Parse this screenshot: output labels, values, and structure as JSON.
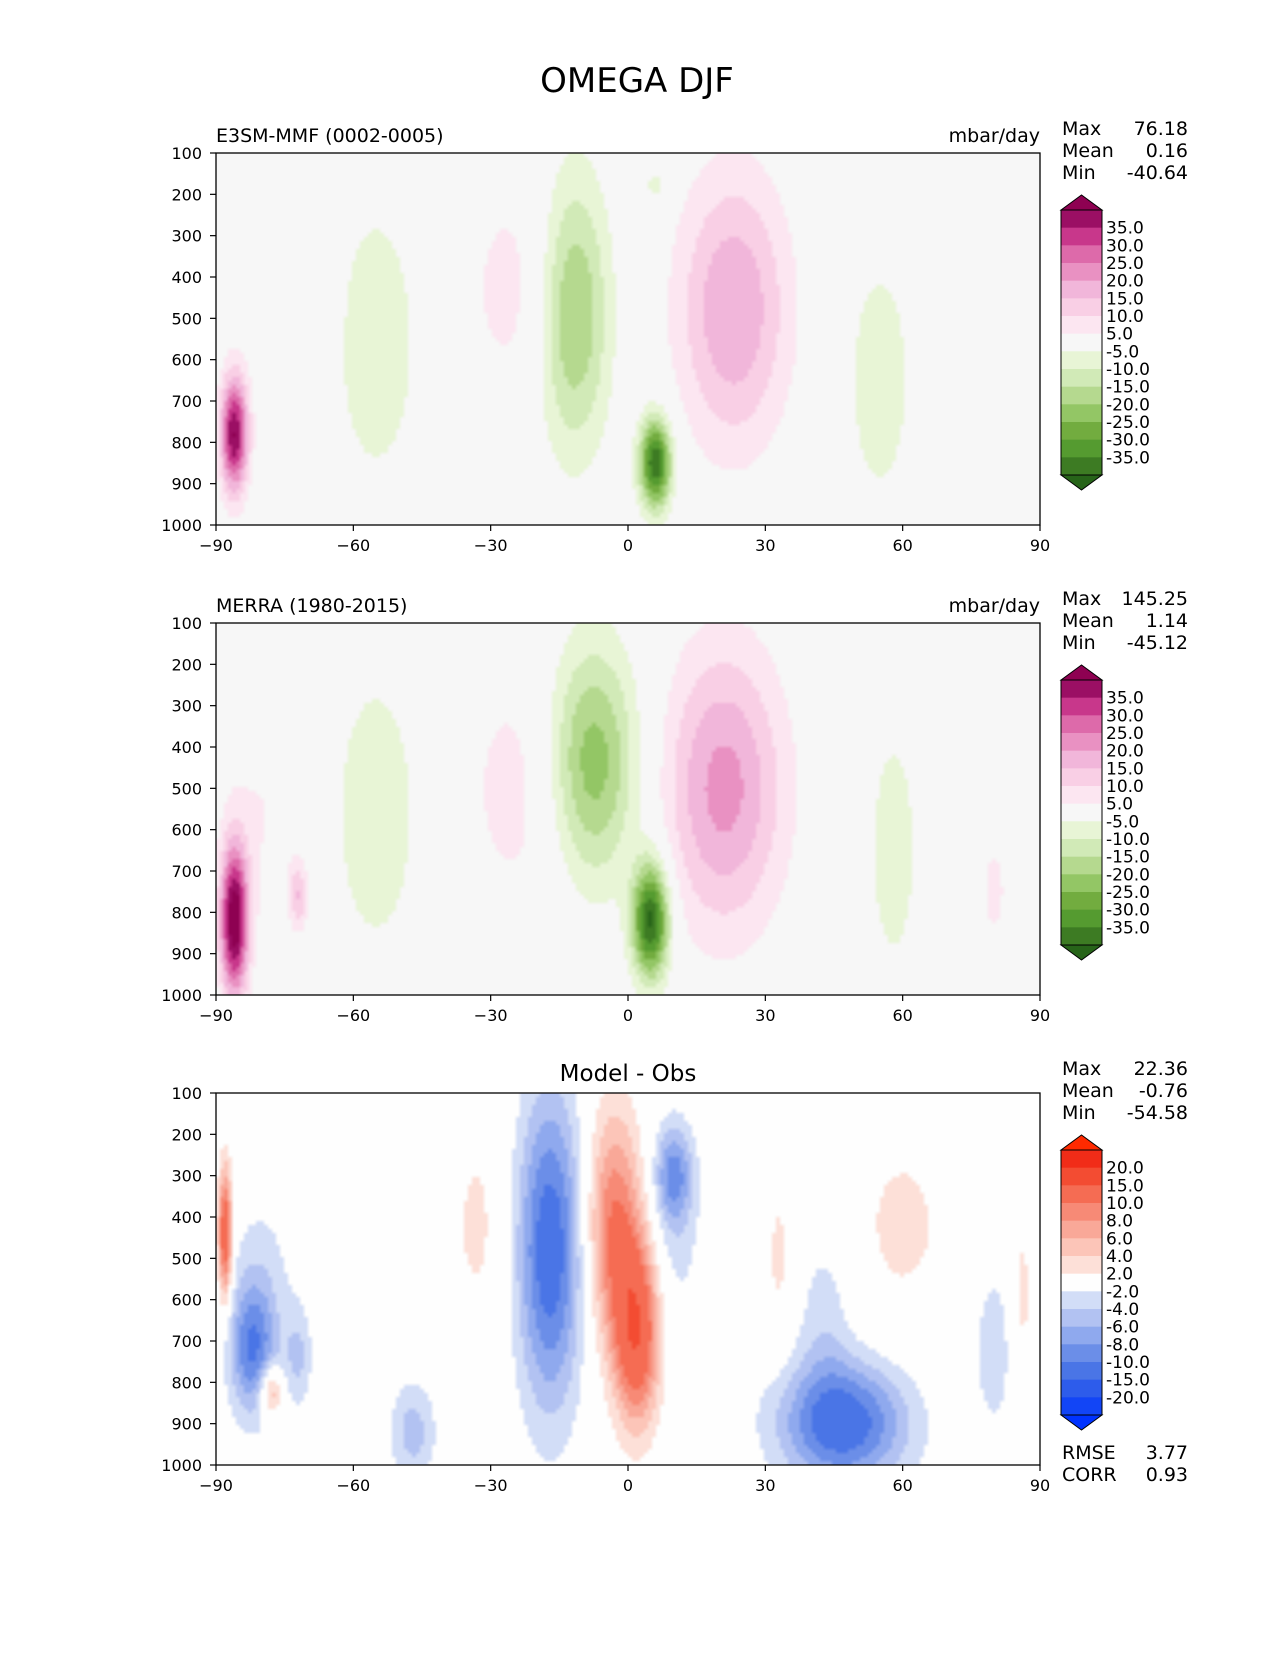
{
  "chart_data": {
    "title": "OMEGA DJF",
    "panels": [
      {
        "id": "model",
        "type": "contour",
        "left_label": "E3SM-MMF (0002-0005)",
        "right_label": "mbar/day",
        "center_label": "",
        "stats": [
          {
            "name": "Max",
            "value": "76.18"
          },
          {
            "name": "Mean",
            "value": "0.16"
          },
          {
            "name": "Min",
            "value": "-40.64"
          }
        ],
        "colorbar": "omega",
        "xlim": [
          -90,
          90
        ],
        "ylim": [
          1000,
          100
        ],
        "blobs": [
          {
            "lat": -22,
            "p": 430,
            "rlat": 14,
            "rp": 290,
            "v": 8
          },
          {
            "lat": -74,
            "p": 470,
            "rlat": 9,
            "rp": 230,
            "v": 4
          },
          {
            "lat": -86,
            "p": 780,
            "rlat": 3,
            "rp": 140,
            "v": 40
          },
          {
            "lat": -55,
            "p": 560,
            "rlat": 9,
            "rp": 330,
            "v": -10
          },
          {
            "lat": -12,
            "p": 480,
            "rlat": 8,
            "rp": 330,
            "v": -24
          },
          {
            "lat": 6,
            "p": 850,
            "rlat": 3.5,
            "rp": 110,
            "v": -40
          },
          {
            "lat": 6,
            "p": 180,
            "rlat": 2.5,
            "rp": 40,
            "v": -8
          },
          {
            "lat": 23,
            "p": 480,
            "rlat": 12,
            "rp": 330,
            "v": 20
          },
          {
            "lat": 55,
            "p": 650,
            "rlat": 8,
            "rp": 340,
            "v": -8
          },
          {
            "lat": 82,
            "p": 600,
            "rlat": 5,
            "rp": 220,
            "v": 4
          }
        ]
      },
      {
        "id": "obs",
        "type": "contour",
        "left_label": "MERRA (1980-2015)",
        "right_label": "mbar/day",
        "center_label": "",
        "stats": [
          {
            "name": "Max",
            "value": "145.25"
          },
          {
            "name": "Mean",
            "value": "1.14"
          },
          {
            "name": "Min",
            "value": "-45.12"
          }
        ],
        "colorbar": "omega",
        "xlim": [
          -90,
          90
        ],
        "ylim": [
          1000,
          100
        ],
        "blobs": [
          {
            "lat": -22,
            "p": 500,
            "rlat": 14,
            "rp": 320,
            "v": 8
          },
          {
            "lat": -80,
            "p": 560,
            "rlat": 9,
            "rp": 320,
            "v": 5
          },
          {
            "lat": -86,
            "p": 820,
            "rlat": 3,
            "rp": 180,
            "v": 45
          },
          {
            "lat": -72,
            "p": 760,
            "rlat": 2,
            "rp": 80,
            "v": 14
          },
          {
            "lat": -55,
            "p": 560,
            "rlat": 9,
            "rp": 330,
            "v": -10
          },
          {
            "lat": -8,
            "p": 440,
            "rlat": 10,
            "rp": 290,
            "v": -25
          },
          {
            "lat": 5,
            "p": 820,
            "rlat": 4,
            "rp": 140,
            "v": -42
          },
          {
            "lat": 21,
            "p": 500,
            "rlat": 13,
            "rp": 340,
            "v": 22
          },
          {
            "lat": 58,
            "p": 650,
            "rlat": 6,
            "rp": 330,
            "v": -8
          },
          {
            "lat": 80,
            "p": 750,
            "rlat": 4,
            "rp": 180,
            "v": 6
          }
        ]
      },
      {
        "id": "diff",
        "type": "contour",
        "left_label": "",
        "right_label": "",
        "center_label": "Model - Obs",
        "stats": [
          {
            "name": "Max",
            "value": "22.36"
          },
          {
            "name": "Mean",
            "value": "-0.76"
          },
          {
            "name": "Min",
            "value": "-54.58"
          }
        ],
        "extra_stats": [
          {
            "name": "RMSE",
            "value": "3.77"
          },
          {
            "name": "CORR",
            "value": "0.93"
          }
        ],
        "colorbar": "diff",
        "xlim": [
          -90,
          90
        ],
        "ylim": [
          1000,
          100
        ],
        "blobs": [
          {
            "lat": -17,
            "p": 480,
            "rlat": 7,
            "rp": 380,
            "v": -12
          },
          {
            "lat": -3,
            "p": 420,
            "rlat": 6,
            "rp": 280,
            "v": 10
          },
          {
            "lat": 2,
            "p": 680,
            "rlat": 5,
            "rp": 220,
            "v": 14
          },
          {
            "lat": 10,
            "p": 300,
            "rlat": 4,
            "rp": 120,
            "v": -8
          },
          {
            "lat": 10,
            "p": 480,
            "rlat": 7,
            "rp": 280,
            "v": -2.5
          },
          {
            "lat": -33,
            "p": 420,
            "rlat": 6,
            "rp": 260,
            "v": 2.5
          },
          {
            "lat": -88,
            "p": 440,
            "rlat": 1.5,
            "rp": 160,
            "v": 14
          },
          {
            "lat": -82,
            "p": 720,
            "rlat": 5,
            "rp": 160,
            "v": -9
          },
          {
            "lat": -80,
            "p": 560,
            "rlat": 8,
            "rp": 260,
            "v": -2.5
          },
          {
            "lat": -72,
            "p": 740,
            "rlat": 3,
            "rp": 120,
            "v": -4
          },
          {
            "lat": -78,
            "p": 820,
            "rlat": 2.5,
            "rp": 60,
            "v": 8
          },
          {
            "lat": 47,
            "p": 900,
            "rlat": 14,
            "rp": 150,
            "v": -12
          },
          {
            "lat": 43,
            "p": 640,
            "rlat": 6,
            "rp": 220,
            "v": -3
          },
          {
            "lat": 80,
            "p": 720,
            "rlat": 4,
            "rp": 180,
            "v": -4
          },
          {
            "lat": -47,
            "p": 920,
            "rlat": 5,
            "rp": 120,
            "v": -5
          },
          {
            "lat": 60,
            "p": 420,
            "rlat": 12,
            "rp": 260,
            "v": 2.5
          },
          {
            "lat": 86,
            "p": 600,
            "rlat": 3,
            "rp": 250,
            "v": 2.5
          },
          {
            "lat": 33,
            "p": 500,
            "rlat": 3,
            "rp": 220,
            "v": 2.5
          }
        ]
      }
    ],
    "y_ticks": [
      100,
      200,
      300,
      400,
      500,
      600,
      700,
      800,
      900,
      1000
    ],
    "x_ticks": [
      -90,
      -60,
      -30,
      0,
      30,
      60,
      90
    ],
    "x_tick_labels": [
      "−90",
      "−60",
      "−30",
      "0",
      "30",
      "60",
      "90"
    ],
    "colorbars": {
      "omega": {
        "bounds": [
          -40,
          -35,
          -30,
          -25,
          -20,
          -15,
          -10,
          -5,
          5,
          10,
          15,
          20,
          25,
          30,
          35,
          40
        ],
        "tick_labels": [
          "-35.0",
          "-30.0",
          "-25.0",
          "-20.0",
          "-15.0",
          "-10.0",
          "-5.0",
          "5.0",
          "10.0",
          "15.0",
          "20.0",
          "25.0",
          "30.0",
          "35.0"
        ],
        "tick_values": [
          -35,
          -30,
          -25,
          -20,
          -15,
          -10,
          -5,
          5,
          10,
          15,
          20,
          25,
          30,
          35
        ],
        "colors": [
          "#276419",
          "#3d7b23",
          "#559b30",
          "#72ac3f",
          "#93c665",
          "#b5d98f",
          "#d1eab7",
          "#e8f5d6",
          "#f7f7f7",
          "#fce6f1",
          "#f9cfe5",
          "#f1b6da",
          "#e991c2",
          "#dd6aaa",
          "#c8378b",
          "#9b0f64",
          "#8e0152"
        ]
      },
      "diff": {
        "bounds": [
          -25,
          -20,
          -15,
          -10,
          -8,
          -6,
          -4,
          -2,
          2,
          4,
          6,
          8,
          10,
          15,
          20,
          25
        ],
        "tick_labels": [
          "-20.0",
          "-15.0",
          "-10.0",
          "-8.0",
          "-6.0",
          "-4.0",
          "-2.0",
          "2.0",
          "4.0",
          "6.0",
          "8.0",
          "10.0",
          "15.0",
          "20.0"
        ],
        "tick_values": [
          -20,
          -15,
          -10,
          -8,
          -6,
          -4,
          -2,
          2,
          4,
          6,
          8,
          10,
          15,
          20
        ],
        "colors": [
          "#0033ff",
          "#1245f6",
          "#2d5ceb",
          "#4a75e6",
          "#6b8ee8",
          "#8fa9ee",
          "#b2c2f2",
          "#d2ddf7",
          "#fefefe",
          "#fde0d8",
          "#fcc5b8",
          "#f9a898",
          "#f78a76",
          "#f56c53",
          "#f34c32",
          "#f12c18",
          "#ff2a00"
        ]
      }
    }
  }
}
